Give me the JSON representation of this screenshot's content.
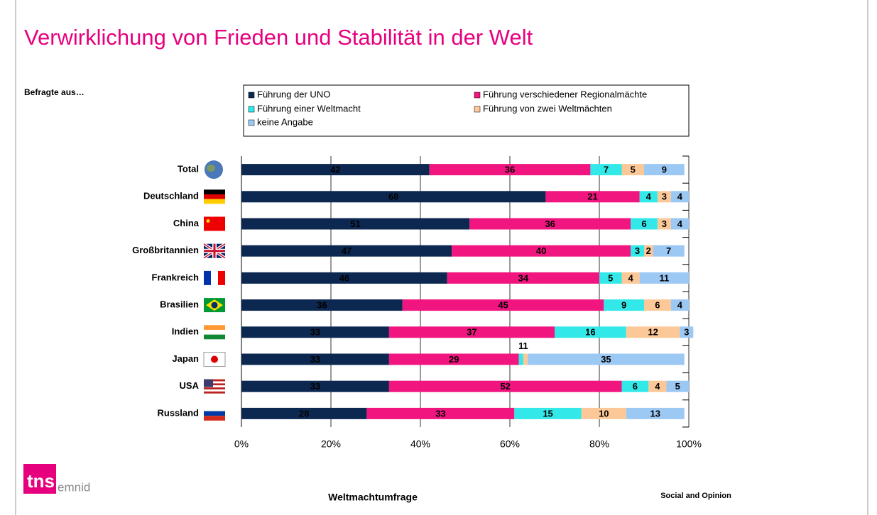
{
  "chart_data": {
    "type": "bar",
    "orientation": "horizontal",
    "stacked": true,
    "title": "Verwirklichung von Frieden und Stabilität in der Welt",
    "ylabel": "Befragte aus…",
    "categories": [
      "Total",
      "Deutschland",
      "China",
      "Großbritannien",
      "Frankreich",
      "Brasilien",
      "Indien",
      "Japan",
      "USA",
      "Russland"
    ],
    "series": [
      {
        "name": "Führung der UNO",
        "color": "#0c2850",
        "values": [
          42,
          68,
          51,
          47,
          46,
          36,
          33,
          33,
          33,
          28
        ]
      },
      {
        "name": "Führung verschiedener Regionalmächte",
        "color": "#f0157f",
        "values": [
          36,
          21,
          36,
          40,
          34,
          45,
          37,
          29,
          52,
          33
        ]
      },
      {
        "name": "Führung einer Weltmacht",
        "color": "#33e8e8",
        "values": [
          7,
          4,
          6,
          3,
          5,
          9,
          16,
          1,
          6,
          15
        ]
      },
      {
        "name": "Führung von zwei Weltmächten",
        "color": "#fcc898",
        "values": [
          5,
          3,
          3,
          2,
          4,
          6,
          12,
          1,
          4,
          10
        ]
      },
      {
        "name": "keine Angabe",
        "color": "#9cc8f4",
        "values": [
          9,
          4,
          4,
          7,
          11,
          4,
          3,
          35,
          5,
          13
        ]
      }
    ],
    "xlim": [
      0,
      100
    ],
    "xticks": [
      {
        "value": 0,
        "label": "0%"
      },
      {
        "value": 20,
        "label": "20%"
      },
      {
        "value": 40,
        "label": "40%"
      },
      {
        "value": 60,
        "label": "60%"
      },
      {
        "value": 80,
        "label": "80%"
      },
      {
        "value": 100,
        "label": "100%"
      }
    ],
    "grid": true,
    "legend": "top"
  },
  "logo": {
    "brand": "tns",
    "sub": "emnid"
  },
  "footer": {
    "center": "Weltmachtumfrage",
    "right": "Social and Opinion"
  }
}
